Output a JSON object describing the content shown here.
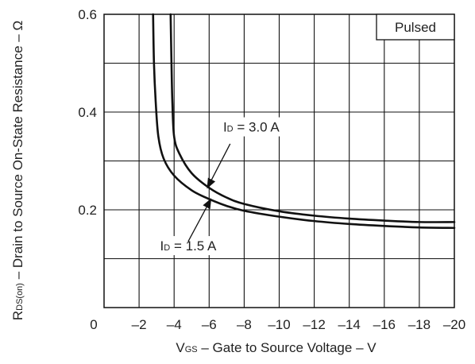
{
  "chart_data": {
    "type": "line",
    "title": "",
    "xlabel": {
      "main": "V",
      "sub": "GS",
      "rest": " – Gate to Source Voltage – V"
    },
    "ylabel": {
      "main": "R",
      "sub": "DS(on)",
      "rest": " – Drain to Source On-State Resistance – Ω"
    },
    "x_ticks": [
      {
        "value": 0,
        "label": "0"
      },
      {
        "value": -2,
        "label": "–2"
      },
      {
        "value": -4,
        "label": "–4"
      },
      {
        "value": -6,
        "label": "–6"
      },
      {
        "value": -8,
        "label": "–8"
      },
      {
        "value": -10,
        "label": "–10"
      },
      {
        "value": -12,
        "label": "–12"
      },
      {
        "value": -14,
        "label": "–14"
      },
      {
        "value": -16,
        "label": "–16"
      },
      {
        "value": -18,
        "label": "–18"
      },
      {
        "value": -20,
        "label": "–20"
      }
    ],
    "y_ticks": [
      {
        "value": 0.2,
        "label": "0.2"
      },
      {
        "value": 0.4,
        "label": "0.4"
      },
      {
        "value": 0.6,
        "label": "0.6"
      }
    ],
    "xlim": [
      0,
      -20
    ],
    "ylim": [
      0,
      0.6
    ],
    "grid": true,
    "x_grid_step": -2,
    "y_grid_step": 0.1,
    "series": [
      {
        "name": "ID = 3.0 A",
        "x": [
          -3.8,
          -3.85,
          -3.9,
          -4,
          -4.3,
          -5,
          -6,
          -7,
          -8,
          -10,
          -12,
          -14,
          -16,
          -18,
          -20
        ],
        "y": [
          0.6,
          0.5,
          0.42,
          0.35,
          0.315,
          0.275,
          0.245,
          0.225,
          0.212,
          0.197,
          0.188,
          0.182,
          0.178,
          0.175,
          0.175
        ]
      },
      {
        "name": "ID = 1.5 A",
        "x": [
          -2.8,
          -2.85,
          -2.95,
          -3.1,
          -3.4,
          -4,
          -5,
          -6,
          -7,
          -8,
          -10,
          -12,
          -14,
          -16,
          -18,
          -20
        ],
        "y": [
          0.6,
          0.5,
          0.42,
          0.35,
          0.305,
          0.27,
          0.24,
          0.222,
          0.208,
          0.198,
          0.186,
          0.177,
          0.171,
          0.167,
          0.164,
          0.163
        ]
      }
    ],
    "legend_box": "Pulsed",
    "annotations": [
      {
        "series": 0,
        "label_main": "I",
        "label_sub": "D",
        "label_rest": " = 3.0 A",
        "text_at": [
          -6.8,
          0.36
        ],
        "arrow_from": [
          -7.2,
          0.335
        ],
        "arrow_to": [
          -5.9,
          0.245
        ]
      },
      {
        "series": 1,
        "label_main": "I",
        "label_sub": "D",
        "label_rest": " = 1.5 A",
        "text_at": [
          -3.2,
          0.117
        ],
        "arrow_from": [
          -4.8,
          0.135
        ],
        "arrow_to": [
          -6.1,
          0.222
        ]
      }
    ],
    "line_color": "#111111",
    "grid_color": "#111111"
  }
}
